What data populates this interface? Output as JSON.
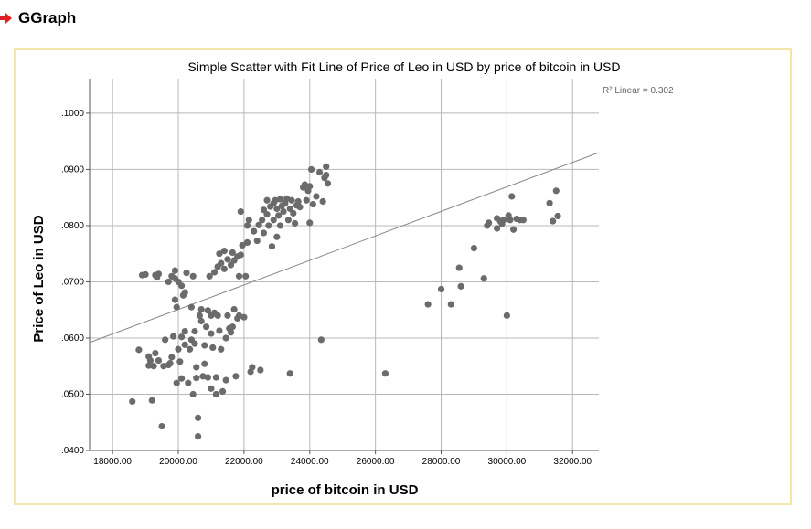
{
  "header": {
    "title": "GGraph",
    "icon": "right-arrow-icon",
    "icon_color": "#e02020"
  },
  "chart_data": {
    "type": "scatter",
    "title": "Simple Scatter with Fit Line of Price of Leo in USD by price of bitcoin in USD",
    "xlabel": "price of bitcoin in USD",
    "ylabel": "Price of Leo in USD",
    "xlim": [
      17300,
      32800
    ],
    "ylim": [
      0.04,
      0.106
    ],
    "xticks": [
      18000,
      20000,
      22000,
      24000,
      26000,
      28000,
      30000,
      32000
    ],
    "xtick_labels": [
      "18000.00",
      "20000.00",
      "22000.00",
      "24000.00",
      "26000.00",
      "28000.00",
      "30000.00",
      "32000.00"
    ],
    "yticks": [
      0.04,
      0.05,
      0.06,
      0.07,
      0.08,
      0.09,
      0.1
    ],
    "ytick_labels": [
      ".0400",
      ".0500",
      ".0600",
      ".0700",
      ".0800",
      ".0900",
      ".1000"
    ],
    "grid": true,
    "annotation": "R² Linear = 0.302",
    "fit_line": {
      "x": [
        17300,
        32800
      ],
      "y": [
        0.0592,
        0.093
      ]
    },
    "point_color": "#6b6b6b",
    "line_color": "#8a8a8a",
    "points": [
      [
        18600,
        0.0487
      ],
      [
        18800,
        0.0579
      ],
      [
        18900,
        0.0712
      ],
      [
        19000,
        0.0713
      ],
      [
        19100,
        0.0567
      ],
      [
        19100,
        0.0551
      ],
      [
        19150,
        0.056
      ],
      [
        19200,
        0.0489
      ],
      [
        19250,
        0.055
      ],
      [
        19300,
        0.0573
      ],
      [
        19300,
        0.0712
      ],
      [
        19350,
        0.0708
      ],
      [
        19400,
        0.0714
      ],
      [
        19400,
        0.056
      ],
      [
        19500,
        0.0443
      ],
      [
        19550,
        0.055
      ],
      [
        19600,
        0.0597
      ],
      [
        19700,
        0.0552
      ],
      [
        19700,
        0.07
      ],
      [
        19750,
        0.0555
      ],
      [
        19800,
        0.071
      ],
      [
        19800,
        0.0566
      ],
      [
        19850,
        0.0603
      ],
      [
        19900,
        0.0706
      ],
      [
        19900,
        0.072
      ],
      [
        19900,
        0.0668
      ],
      [
        19950,
        0.0655
      ],
      [
        19950,
        0.052
      ],
      [
        20000,
        0.07
      ],
      [
        20000,
        0.058
      ],
      [
        20050,
        0.0558
      ],
      [
        20100,
        0.0693
      ],
      [
        20100,
        0.0602
      ],
      [
        20100,
        0.0528
      ],
      [
        20150,
        0.0676
      ],
      [
        20200,
        0.0681
      ],
      [
        20200,
        0.0588
      ],
      [
        20200,
        0.0612
      ],
      [
        20250,
        0.0716
      ],
      [
        20300,
        0.052
      ],
      [
        20350,
        0.058
      ],
      [
        20400,
        0.0655
      ],
      [
        20400,
        0.0597
      ],
      [
        20450,
        0.05
      ],
      [
        20450,
        0.071
      ],
      [
        20500,
        0.0612
      ],
      [
        20500,
        0.059
      ],
      [
        20550,
        0.0548
      ],
      [
        20550,
        0.0529
      ],
      [
        20600,
        0.0458
      ],
      [
        20600,
        0.0425
      ],
      [
        20650,
        0.064
      ],
      [
        20700,
        0.0651
      ],
      [
        20700,
        0.063
      ],
      [
        20750,
        0.0532
      ],
      [
        20800,
        0.0587
      ],
      [
        20800,
        0.0554
      ],
      [
        20850,
        0.062
      ],
      [
        20900,
        0.0649
      ],
      [
        20900,
        0.053
      ],
      [
        20950,
        0.071
      ],
      [
        21000,
        0.064
      ],
      [
        21000,
        0.0608
      ],
      [
        21000,
        0.051
      ],
      [
        21050,
        0.0583
      ],
      [
        21100,
        0.0717
      ],
      [
        21100,
        0.0645
      ],
      [
        21150,
        0.053
      ],
      [
        21150,
        0.05
      ],
      [
        21200,
        0.0727
      ],
      [
        21200,
        0.064
      ],
      [
        21250,
        0.075
      ],
      [
        21250,
        0.0613
      ],
      [
        21300,
        0.0733
      ],
      [
        21300,
        0.058
      ],
      [
        21350,
        0.0505
      ],
      [
        21400,
        0.0755
      ],
      [
        21400,
        0.0723
      ],
      [
        21450,
        0.06
      ],
      [
        21450,
        0.0525
      ],
      [
        21500,
        0.074
      ],
      [
        21500,
        0.064
      ],
      [
        21550,
        0.0617
      ],
      [
        21600,
        0.073
      ],
      [
        21600,
        0.061
      ],
      [
        21650,
        0.0752
      ],
      [
        21650,
        0.062
      ],
      [
        21700,
        0.0738
      ],
      [
        21700,
        0.0651
      ],
      [
        21750,
        0.0532
      ],
      [
        21800,
        0.0745
      ],
      [
        21800,
        0.0635
      ],
      [
        21850,
        0.064
      ],
      [
        21850,
        0.071
      ],
      [
        21900,
        0.0825
      ],
      [
        21900,
        0.0748
      ],
      [
        21950,
        0.0765
      ],
      [
        22000,
        0.0637
      ],
      [
        22050,
        0.071
      ],
      [
        22100,
        0.08
      ],
      [
        22100,
        0.077
      ],
      [
        22150,
        0.081
      ],
      [
        22200,
        0.054
      ],
      [
        22250,
        0.0548
      ],
      [
        22300,
        0.079
      ],
      [
        22400,
        0.0773
      ],
      [
        22450,
        0.0801
      ],
      [
        22500,
        0.0543
      ],
      [
        22550,
        0.081
      ],
      [
        22600,
        0.0787
      ],
      [
        22600,
        0.0828
      ],
      [
        22700,
        0.082
      ],
      [
        22700,
        0.0845
      ],
      [
        22750,
        0.08
      ],
      [
        22800,
        0.0834
      ],
      [
        22850,
        0.0763
      ],
      [
        22900,
        0.084
      ],
      [
        22900,
        0.081
      ],
      [
        22950,
        0.0845
      ],
      [
        23000,
        0.078
      ],
      [
        23000,
        0.083
      ],
      [
        23050,
        0.0818
      ],
      [
        23100,
        0.0847
      ],
      [
        23100,
        0.08
      ],
      [
        23150,
        0.0835
      ],
      [
        23200,
        0.0825
      ],
      [
        23250,
        0.084
      ],
      [
        23300,
        0.0848
      ],
      [
        23350,
        0.081
      ],
      [
        23400,
        0.083
      ],
      [
        23400,
        0.0537
      ],
      [
        23450,
        0.0845
      ],
      [
        23500,
        0.0822
      ],
      [
        23550,
        0.0804
      ],
      [
        23600,
        0.0836
      ],
      [
        23650,
        0.0843
      ],
      [
        23700,
        0.0833
      ],
      [
        23800,
        0.0868
      ],
      [
        23850,
        0.0873
      ],
      [
        23900,
        0.0845
      ],
      [
        23950,
        0.0862
      ],
      [
        24000,
        0.0805
      ],
      [
        24000,
        0.087
      ],
      [
        24050,
        0.09
      ],
      [
        24100,
        0.0838
      ],
      [
        24200,
        0.0852
      ],
      [
        24300,
        0.0895
      ],
      [
        24350,
        0.0597
      ],
      [
        24400,
        0.0843
      ],
      [
        24450,
        0.0885
      ],
      [
        24500,
        0.0905
      ],
      [
        24500,
        0.089
      ],
      [
        24550,
        0.0875
      ],
      [
        26300,
        0.0537
      ],
      [
        27600,
        0.066
      ],
      [
        28000,
        0.0687
      ],
      [
        28300,
        0.066
      ],
      [
        28550,
        0.0725
      ],
      [
        28600,
        0.0692
      ],
      [
        29000,
        0.076
      ],
      [
        29300,
        0.0706
      ],
      [
        29400,
        0.08
      ],
      [
        29450,
        0.0805
      ],
      [
        29700,
        0.0795
      ],
      [
        29700,
        0.0813
      ],
      [
        29800,
        0.0808
      ],
      [
        29850,
        0.0803
      ],
      [
        29900,
        0.081
      ],
      [
        30000,
        0.064
      ],
      [
        30050,
        0.0818
      ],
      [
        30100,
        0.081
      ],
      [
        30150,
        0.0852
      ],
      [
        30200,
        0.0793
      ],
      [
        30300,
        0.0812
      ],
      [
        30400,
        0.081
      ],
      [
        30500,
        0.081
      ],
      [
        31300,
        0.084
      ],
      [
        31400,
        0.0808
      ],
      [
        31500,
        0.0862
      ],
      [
        31550,
        0.0817
      ]
    ]
  }
}
